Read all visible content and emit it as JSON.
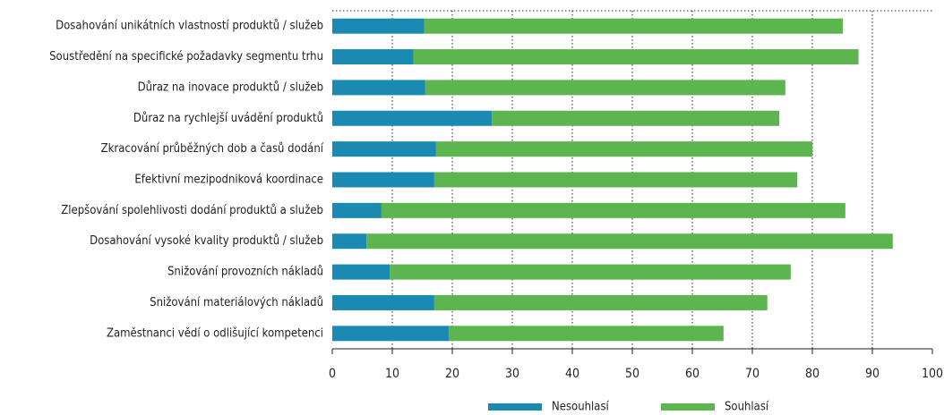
{
  "chart_data": {
    "type": "stacked_bar_horizontal",
    "categories": [
      "Dosahování unikátních vlastností produktů / služeb",
      "Soustředění na specifické požadavky segmentu trhu",
      "Důraz na inovace produktů / služeb",
      "Důraz na rychlejší uvádění produktů",
      "Zkracování průběžných dob a časů dodání",
      "Efektivní mezipodniková koordinace",
      "Zlepšování spolehlivosti dodání produktů a služeb",
      "Dosahování vysoké kvality produktů / služeb",
      "Snižování provozních nákladů",
      "Snižování materiálových nákladů",
      "Zaměstnanci vědí o odlišující kompetenci"
    ],
    "series": [
      {
        "name": "Nesouhlasí",
        "color": "#1a8ab3",
        "values": [
          15.3,
          13.5,
          15.5,
          26.6,
          17.3,
          17,
          8.2,
          5.7,
          9.6,
          17,
          19.4
        ]
      },
      {
        "name": "Souhlasí",
        "color": "#5cb54f",
        "values": [
          69.8,
          74.2,
          60,
          47.9,
          62.7,
          60.5,
          77.3,
          87.7,
          66.8,
          55.5,
          45.8
        ]
      }
    ],
    "xlim": [
      0,
      100
    ],
    "xticks": [
      0,
      10,
      20,
      30,
      40,
      50,
      60,
      70,
      80,
      90,
      100
    ],
    "grid": true,
    "legend": "bottom"
  }
}
